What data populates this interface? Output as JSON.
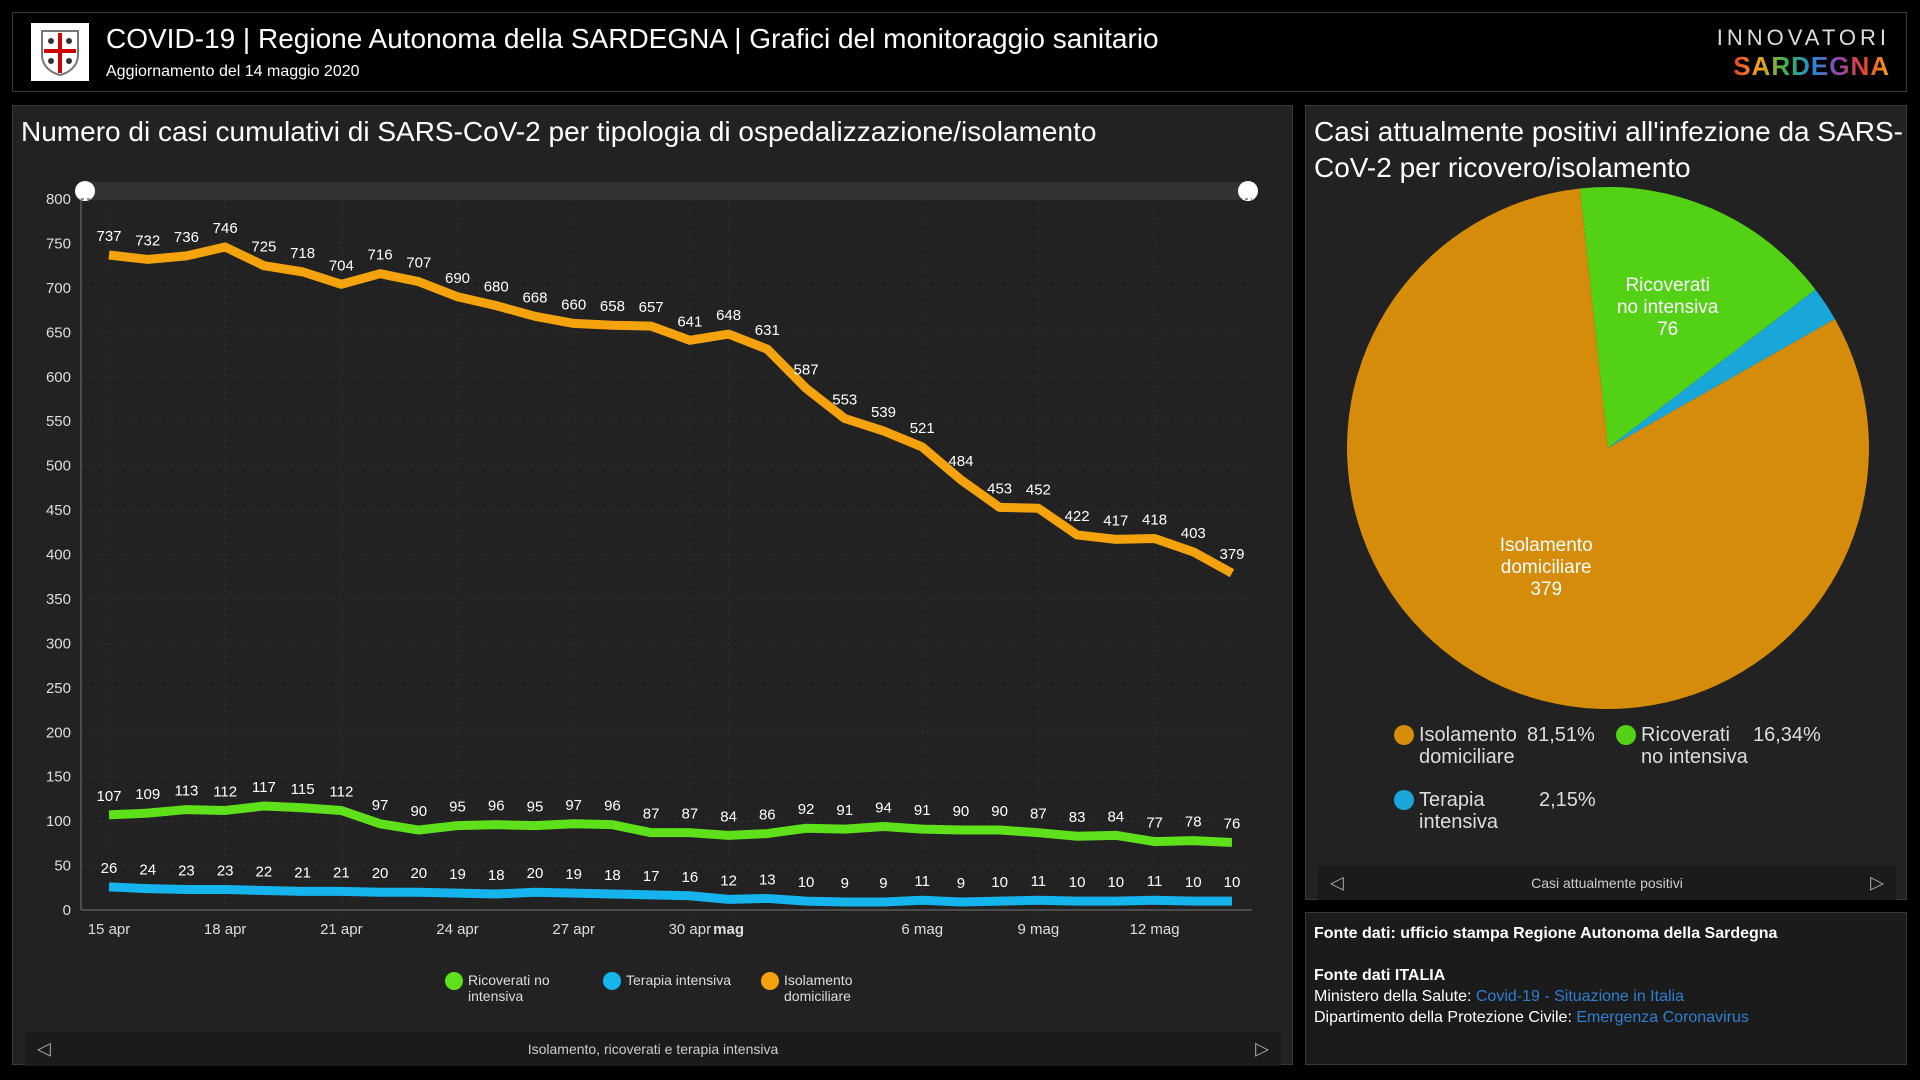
{
  "header": {
    "title": "COVID-19 | Regione Autonoma della SARDEGNA | Grafici del monitoraggio sanitario",
    "subtitle": "Aggiornamento del 14 maggio 2020",
    "brand_top": "INNOVATORI",
    "brand_bottom": "SARDEGNA"
  },
  "colors": {
    "ricoverati": "#5ee01a",
    "terapia": "#16b4ec",
    "isolamento": "#f5a30c",
    "pie_isolamento": "#d48c0a",
    "pie_ricoverati": "#53d215",
    "pie_terapia": "#19a6d8",
    "link": "#2f7fd1"
  },
  "left_panel": {
    "title": "Numero di casi cumulativi di SARS-CoV-2 per tipologia di ospedalizzazione/isolamento",
    "nav_label": "Isolamento, ricoverati e terapia intensiva"
  },
  "chart_data": [
    {
      "type": "line",
      "ylim": [
        0,
        800
      ],
      "yticks": [
        0,
        50,
        100,
        150,
        200,
        250,
        300,
        350,
        400,
        450,
        500,
        550,
        600,
        650,
        700,
        750,
        800
      ],
      "grid": true,
      "legend": "bottom",
      "x": [
        "15 apr",
        "16 apr",
        "17 apr",
        "18 apr",
        "19 apr",
        "20 apr",
        "21 apr",
        "22 apr",
        "23 apr",
        "24 apr",
        "25 apr",
        "26 apr",
        "27 apr",
        "28 apr",
        "29 apr",
        "30 apr",
        "1 mag",
        "2 mag",
        "3 mag",
        "4 mag",
        "5 mag",
        "6 mag",
        "7 mag",
        "8 mag",
        "9 mag",
        "10 mag",
        "11 mag",
        "12 mag",
        "13 mag",
        "14 mag"
      ],
      "xtick_labels": [
        {
          "index": 0,
          "label": "15 apr"
        },
        {
          "index": 3,
          "label": "18 apr"
        },
        {
          "index": 6,
          "label": "21 apr"
        },
        {
          "index": 9,
          "label": "24 apr"
        },
        {
          "index": 12,
          "label": "27 apr"
        },
        {
          "index": 15,
          "label": "30 apr"
        },
        {
          "index": 16,
          "label": "mag",
          "bold": true
        },
        {
          "index": 21,
          "label": "6 mag"
        },
        {
          "index": 24,
          "label": "9 mag"
        },
        {
          "index": 27,
          "label": "12 mag"
        }
      ],
      "series": [
        {
          "name": "Ricoverati no intensiva",
          "color": "#5ee01a",
          "values": [
            107,
            109,
            113,
            112,
            117,
            115,
            112,
            97,
            90,
            95,
            96,
            95,
            97,
            96,
            87,
            87,
            84,
            86,
            92,
            91,
            94,
            91,
            90,
            90,
            87,
            83,
            84,
            77,
            78,
            76
          ]
        },
        {
          "name": "Terapia intensiva",
          "color": "#16b4ec",
          "values": [
            26,
            24,
            23,
            23,
            22,
            21,
            21,
            20,
            20,
            19,
            18,
            20,
            19,
            18,
            17,
            16,
            12,
            13,
            10,
            9,
            9,
            11,
            9,
            10,
            11,
            10,
            10,
            11,
            10,
            10
          ]
        },
        {
          "name": "Isolamento domiciliare",
          "color": "#f5a30c",
          "values": [
            737,
            732,
            736,
            746,
            725,
            718,
            704,
            716,
            707,
            690,
            680,
            668,
            660,
            658,
            657,
            641,
            648,
            631,
            587,
            553,
            539,
            521,
            484,
            453,
            452,
            422,
            417,
            418,
            403,
            379
          ]
        }
      ]
    },
    {
      "type": "pie",
      "title": "Casi attualmente positivi all'infezione da SARS-CoV-2 per ricovero/isolamento",
      "slices": [
        {
          "label": "Ricoverati no intensiva",
          "l1": "Ricoverati",
          "l2": "no intensiva",
          "value": 76,
          "percent": "16,34%",
          "color": "#53d215"
        },
        {
          "label": "Terapia intensiva",
          "l1": "Terapia",
          "l2": "intensiva",
          "value": 10,
          "percent": "2,15%",
          "color": "#19a6d8"
        },
        {
          "label": "Isolamento domiciliare",
          "l1": "Isolamento",
          "l2": "domiciliare",
          "value": 379,
          "percent": "81,51%",
          "color": "#d48c0a"
        }
      ]
    }
  ],
  "right_panel": {
    "nav_label": "Casi attualmente positivi"
  },
  "footer": {
    "line1": "Fonte dati: ufficio stampa Regione Autonoma della Sardegna",
    "line2": "Fonte dati ITALIA",
    "line3_prefix": "Ministero della Salute: ",
    "line3_link": "Covid-19 - Situazione in Italia",
    "line4_prefix": "Dipartimento della Protezione Civile: ",
    "line4_link": "Emergenza Coronavirus"
  }
}
